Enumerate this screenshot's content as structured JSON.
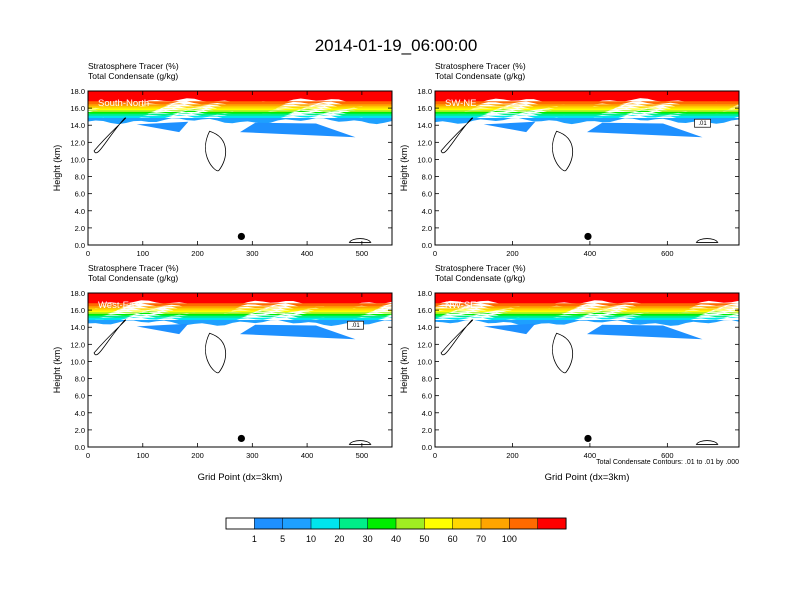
{
  "title": "2014-01-19_06:00:00",
  "colors": {
    "contour_line": "#000000",
    "marker": "#000000"
  },
  "colorbar": {
    "labels": [
      "1",
      "5",
      "10",
      "20",
      "30",
      "40",
      "50",
      "60",
      "70",
      "100"
    ],
    "colors": [
      "#ffffff",
      "#1e90ff",
      "#1ea0ff",
      "#00e5ee",
      "#00ee88",
      "#00ee00",
      "#a0ee22",
      "#ffff00",
      "#ffd700",
      "#ffa500",
      "#ff6a00",
      "#ff0000"
    ]
  },
  "contour_note": "Total Condensate Contours: .01 to .01 by .000",
  "chart_data": [
    {
      "type": "heatmap",
      "panel_label": "South-North",
      "subtitle_line1": "Stratosphere Tracer   (%)",
      "subtitle_line2": "Total Condensate   (g/kg)",
      "ylabel": "Height (km)",
      "xlabel": "",
      "xlim": [
        0,
        555
      ],
      "ylim": [
        0,
        18
      ],
      "xticks": [
        "0",
        "100",
        "200",
        "300",
        "400",
        "500"
      ],
      "yticks": [
        "0.0",
        "2.0",
        "4.0",
        "6.0",
        "8.0",
        "10.0",
        "12.0",
        "14.0",
        "16.0",
        "18.0"
      ],
      "marker_x": 280,
      "marker_y": 1.0,
      "contour_label": ""
    },
    {
      "type": "heatmap",
      "panel_label": "SW-NE",
      "subtitle_line1": "Stratosphere Tracer   (%)",
      "subtitle_line2": "Total Condensate   (g/kg)",
      "ylabel": "Height (km)",
      "xlabel": "",
      "xlim": [
        0,
        785
      ],
      "ylim": [
        0,
        18
      ],
      "xticks": [
        "0",
        "200",
        "400",
        "600"
      ],
      "yticks": [
        "0.0",
        "2.0",
        "4.0",
        "6.0",
        "8.0",
        "10.0",
        "12.0",
        "14.0",
        "16.0",
        "18.0"
      ],
      "marker_x": 395,
      "marker_y": 1.0,
      "contour_label": ".01"
    },
    {
      "type": "heatmap",
      "panel_label": "West-East",
      "subtitle_line1": "Stratosphere Tracer   (%)",
      "subtitle_line2": "Total Condensate   (g/kg)",
      "ylabel": "Height (km)",
      "xlabel": "Grid Point (dx=3km)",
      "xlim": [
        0,
        555
      ],
      "ylim": [
        0,
        18
      ],
      "xticks": [
        "0",
        "100",
        "200",
        "300",
        "400",
        "500"
      ],
      "yticks": [
        "0.0",
        "2.0",
        "4.0",
        "6.0",
        "8.0",
        "10.0",
        "12.0",
        "14.0",
        "16.0",
        "18.0"
      ],
      "marker_x": 280,
      "marker_y": 1.0,
      "contour_label": ".01"
    },
    {
      "type": "heatmap",
      "panel_label": "NW-SE",
      "subtitle_line1": "Stratosphere Tracer   (%)",
      "subtitle_line2": "Total Condensate   (g/kg)",
      "ylabel": "Height (km)",
      "xlabel": "Grid Point (dx=3km)",
      "xlim": [
        0,
        785
      ],
      "ylim": [
        0,
        18
      ],
      "xticks": [
        "0",
        "200",
        "400",
        "600"
      ],
      "yticks": [
        "0.0",
        "2.0",
        "4.0",
        "6.0",
        "8.0",
        "10.0",
        "12.0",
        "14.0",
        "16.0",
        "18.0"
      ],
      "marker_x": 395,
      "marker_y": 1.0,
      "contour_label": ""
    }
  ]
}
